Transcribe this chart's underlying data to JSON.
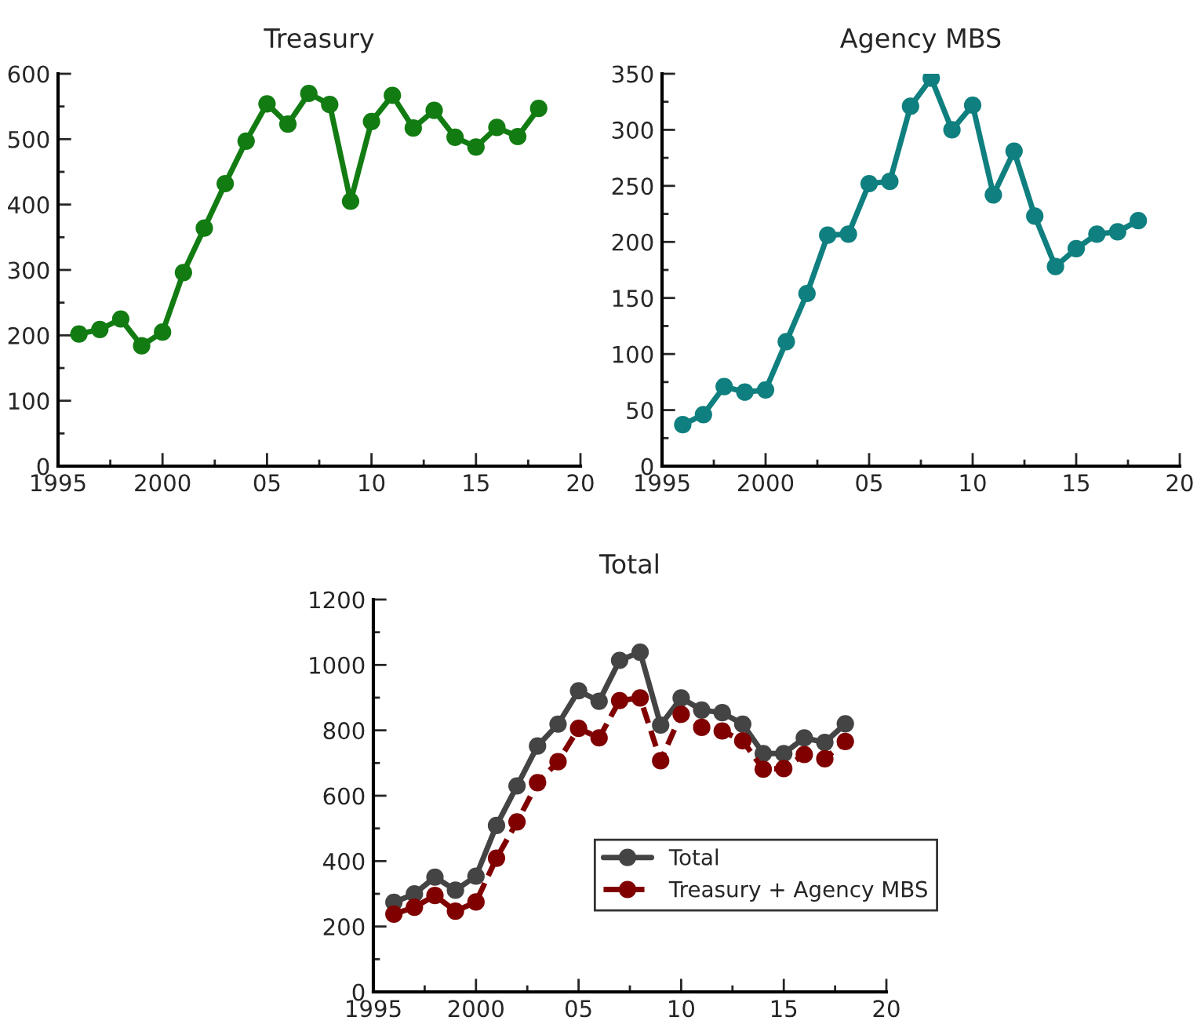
{
  "chart_data": [
    {
      "type": "line",
      "title": "Treasury",
      "x": [
        1996,
        1997,
        1998,
        1999,
        2000,
        2001,
        2002,
        2003,
        2004,
        2005,
        2006,
        2007,
        2008,
        2009,
        2010,
        2011,
        2012,
        2013,
        2014,
        2015,
        2016,
        2017,
        2018
      ],
      "series": [
        {
          "color": "#127c12",
          "values": [
            202,
            209,
            225,
            184,
            205,
            296,
            364,
            432,
            497,
            554,
            523,
            570,
            553,
            405,
            527,
            567,
            517,
            544,
            503,
            488,
            518,
            504,
            547
          ]
        }
      ],
      "xlim": [
        1995,
        2020
      ],
      "xticks": [
        1995,
        2000,
        {
          "value": 2005,
          "label": "05"
        },
        {
          "value": 2010,
          "label": "10"
        },
        {
          "value": 2015,
          "label": "15"
        },
        {
          "value": 2020,
          "label": "20"
        }
      ],
      "ylim": [
        0,
        600
      ],
      "yticks": [
        0,
        100,
        200,
        300,
        400,
        500,
        600
      ],
      "marker": "circle",
      "line_style": "solid",
      "grid": false,
      "legend": false
    },
    {
      "type": "line",
      "title": "Agency MBS",
      "x": [
        1996,
        1997,
        1998,
        1999,
        2000,
        2001,
        2002,
        2003,
        2004,
        2005,
        2006,
        2007,
        2008,
        2009,
        2010,
        2011,
        2012,
        2013,
        2014,
        2015,
        2016,
        2017,
        2018
      ],
      "series": [
        {
          "color": "#0f7f7f",
          "values": [
            37,
            46,
            71,
            66,
            68,
            111,
            154,
            206,
            207,
            252,
            254,
            321,
            346,
            300,
            322,
            242,
            281,
            223,
            178,
            194,
            207,
            209,
            219
          ]
        }
      ],
      "xlim": [
        1995,
        2020
      ],
      "xticks": [
        1995,
        2000,
        {
          "value": 2005,
          "label": "05"
        },
        {
          "value": 2010,
          "label": "10"
        },
        {
          "value": 2015,
          "label": "15"
        },
        {
          "value": 2020,
          "label": "20"
        }
      ],
      "ylim": [
        0,
        350
      ],
      "yticks": [
        0,
        50,
        100,
        150,
        200,
        250,
        300,
        350
      ],
      "marker": "circle",
      "line_style": "solid",
      "grid": false,
      "legend": false
    },
    {
      "type": "line",
      "title": "Total",
      "x": [
        1996,
        1997,
        1998,
        1999,
        2000,
        2001,
        2002,
        2003,
        2004,
        2005,
        2006,
        2007,
        2008,
        2009,
        2010,
        2011,
        2012,
        2013,
        2014,
        2015,
        2016,
        2017,
        2018
      ],
      "series": [
        {
          "name": "Total",
          "color": "#444444",
          "line_style": "solid",
          "values": [
            274,
            300,
            351,
            311,
            354,
            509,
            630,
            752,
            819,
            921,
            889,
            1014,
            1039,
            816,
            899,
            862,
            854,
            819,
            729,
            729,
            777,
            763,
            820
          ]
        },
        {
          "name": "Treasury + Agency MBS",
          "color": "#800000",
          "line_style": "dashed",
          "values": [
            238,
            259,
            295,
            247,
            275,
            409,
            520,
            640,
            704,
            806,
            777,
            891,
            899,
            707,
            849,
            809,
            798,
            768,
            681,
            683,
            726,
            713,
            766
          ]
        }
      ],
      "xlim": [
        1995,
        2020
      ],
      "xticks": [
        1995,
        2000,
        {
          "value": 2005,
          "label": "05"
        },
        {
          "value": 2010,
          "label": "10"
        },
        {
          "value": 2015,
          "label": "15"
        },
        {
          "value": 2020,
          "label": "20"
        }
      ],
      "ylim": [
        0,
        1200
      ],
      "yticks": [
        0,
        200,
        400,
        600,
        800,
        1000,
        1200
      ],
      "marker": "circle",
      "grid": false,
      "legend": "bottom right"
    }
  ]
}
